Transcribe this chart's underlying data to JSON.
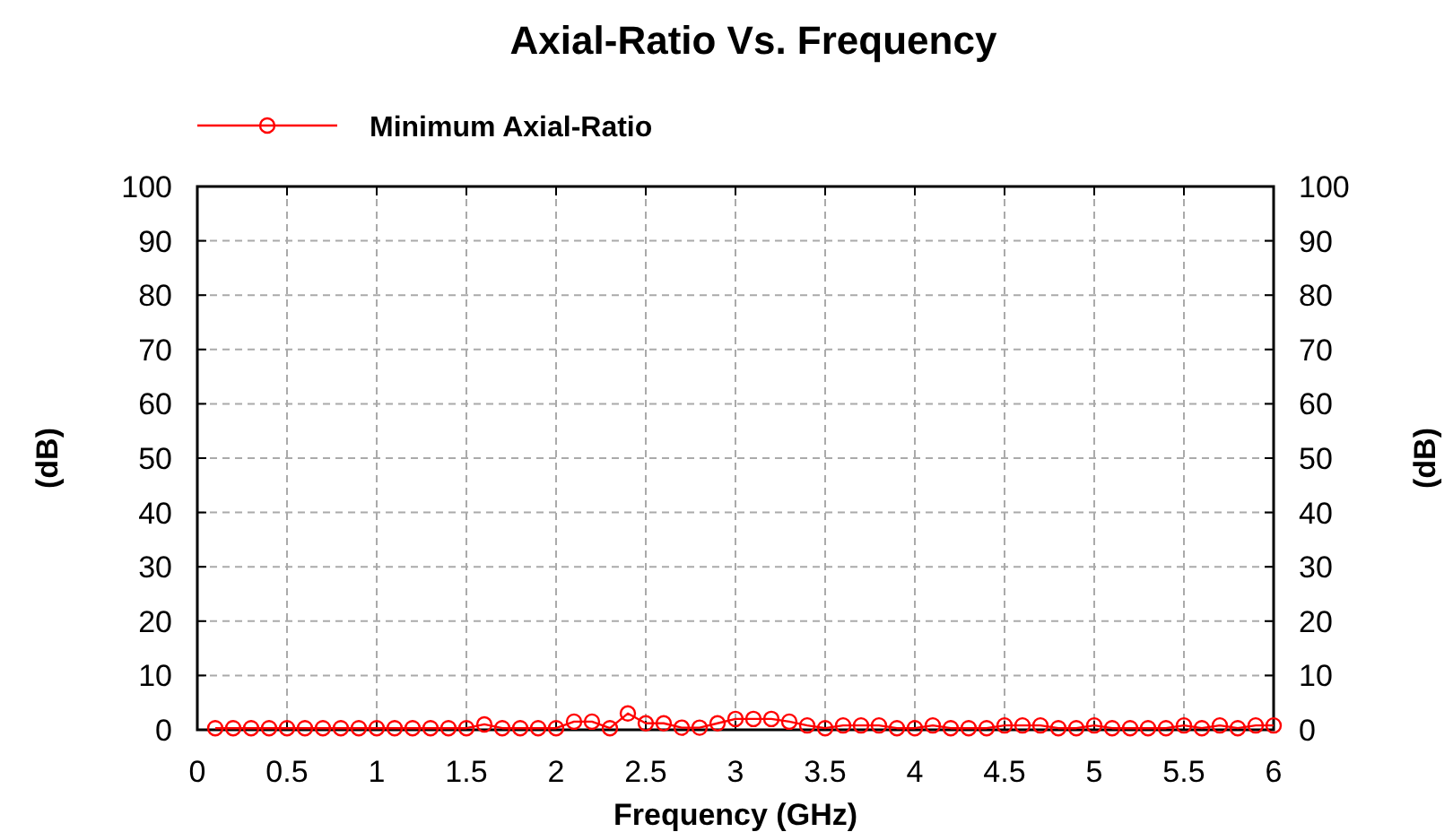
{
  "chart_data": {
    "type": "line",
    "title": "Axial-Ratio Vs. Frequency",
    "xlabel": "Frequency (GHz)",
    "ylabel": "(dB)",
    "y2label": "(dB)",
    "x": [
      0.1,
      0.2,
      0.3,
      0.4,
      0.5,
      0.6,
      0.7,
      0.8,
      0.9,
      1.0,
      1.1,
      1.2,
      1.3,
      1.4,
      1.5,
      1.6,
      1.7,
      1.8,
      1.9,
      2.0,
      2.1,
      2.2,
      2.3,
      2.4,
      2.5,
      2.6,
      2.7,
      2.8,
      2.9,
      3.0,
      3.1,
      3.2,
      3.3,
      3.4,
      3.5,
      3.6,
      3.7,
      3.8,
      3.9,
      4.0,
      4.1,
      4.2,
      4.3,
      4.4,
      4.5,
      4.6,
      4.7,
      4.8,
      4.9,
      5.0,
      5.1,
      5.2,
      5.3,
      5.4,
      5.5,
      5.6,
      5.7,
      5.8,
      5.9,
      6.0
    ],
    "series": [
      {
        "name": "Minimum Axial-Ratio",
        "color": "#ff0000",
        "values": [
          0.3,
          0.3,
          0.3,
          0.3,
          0.3,
          0.3,
          0.3,
          0.3,
          0.3,
          0.3,
          0.3,
          0.3,
          0.3,
          0.3,
          0.3,
          1,
          0.3,
          0.3,
          0.3,
          0.3,
          1.5,
          1.5,
          0.3,
          3,
          1.2,
          1.2,
          0.4,
          0.4,
          1.2,
          2,
          2,
          2,
          1.5,
          0.8,
          0.3,
          0.8,
          0.8,
          0.8,
          0.3,
          0.3,
          0.8,
          0.3,
          0.3,
          0.3,
          0.8,
          0.8,
          0.8,
          0.3,
          0.3,
          0.8,
          0.3,
          0.3,
          0.3,
          0.3,
          0.8,
          0.3,
          0.8,
          0.3,
          0.8,
          0.8
        ]
      }
    ],
    "xlim": [
      0,
      6
    ],
    "xticks": [
      0,
      0.5,
      1,
      1.5,
      2,
      2.5,
      3,
      3.5,
      4,
      4.5,
      5,
      5.5,
      6
    ],
    "ylim": [
      0,
      100
    ],
    "yticks": [
      0,
      10,
      20,
      30,
      40,
      50,
      60,
      70,
      80,
      90,
      100
    ],
    "y2lim": [
      0,
      100
    ],
    "y2ticks": [
      0,
      10,
      20,
      30,
      40,
      50,
      60,
      70,
      80,
      90,
      100
    ],
    "grid": true,
    "legend": "top left",
    "marker": "circle",
    "line_style": "solid"
  }
}
